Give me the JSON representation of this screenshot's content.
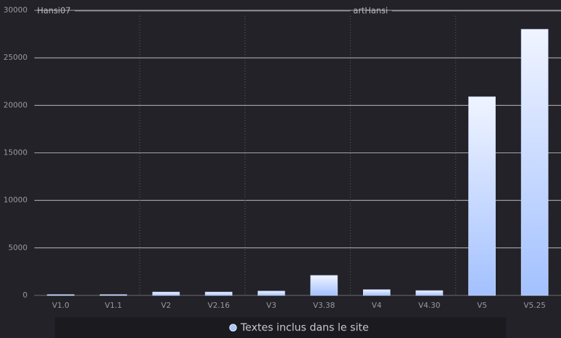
{
  "chart_data": {
    "type": "bar",
    "annotations": [
      "Hansi07",
      "artHansi"
    ],
    "categories": [
      "V1.0",
      "V1.1",
      "V2",
      "V2.16",
      "V3",
      "V3.38",
      "V4",
      "V4.30",
      "V5",
      "V5.25"
    ],
    "series": [
      {
        "name": "Textes inclus dans le site",
        "color": "#a9c6ff",
        "values": [
          80,
          80,
          350,
          350,
          450,
          2100,
          600,
          500,
          20900,
          28000
        ]
      }
    ],
    "ylim": [
      0,
      30000
    ],
    "yticks": [
      0,
      5000,
      10000,
      15000,
      20000,
      25000,
      30000
    ],
    "grid": true
  }
}
